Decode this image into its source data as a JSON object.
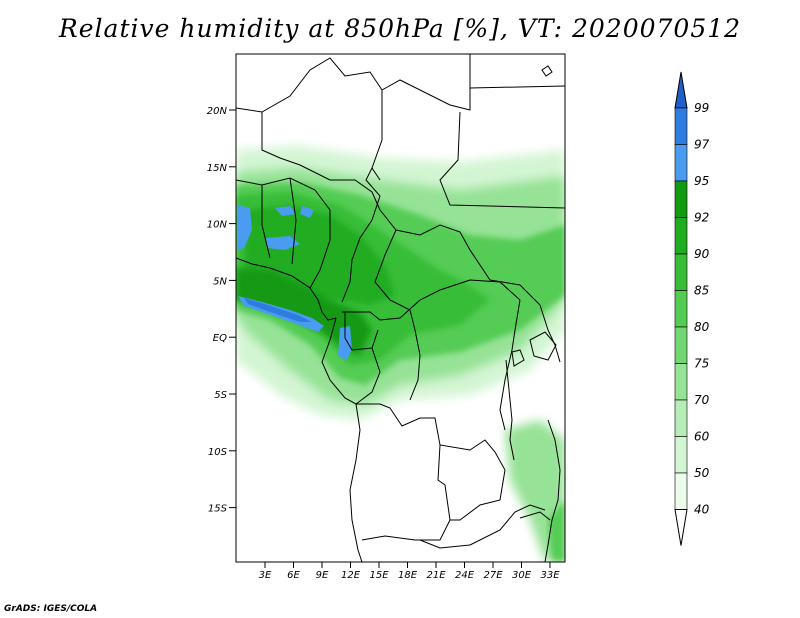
{
  "title": "Relative humidity at 850hPa [%], VT: 2020070512",
  "credit": "GrADS: IGES/COLA",
  "map": {
    "lat_labels": [
      "20N",
      "15N",
      "10N",
      "5N",
      "EQ",
      "5S",
      "10S",
      "15S"
    ],
    "lon_labels": [
      "3E",
      "6E",
      "9E",
      "12E",
      "15E",
      "18E",
      "21E",
      "24E",
      "27E",
      "30E",
      "33E"
    ]
  },
  "colorbar": {
    "labels": [
      "99",
      "97",
      "95",
      "92",
      "90",
      "85",
      "80",
      "75",
      "70",
      "60",
      "50",
      "40"
    ],
    "colors": [
      "#1f5fc8",
      "#2f7ce0",
      "#4a9cf0",
      "#129a12",
      "#20ac20",
      "#37bd37",
      "#54cc54",
      "#72d772",
      "#96e296",
      "#b6ecb6",
      "#d3f5d3",
      "#ecfbec",
      "#ffffff"
    ]
  }
}
